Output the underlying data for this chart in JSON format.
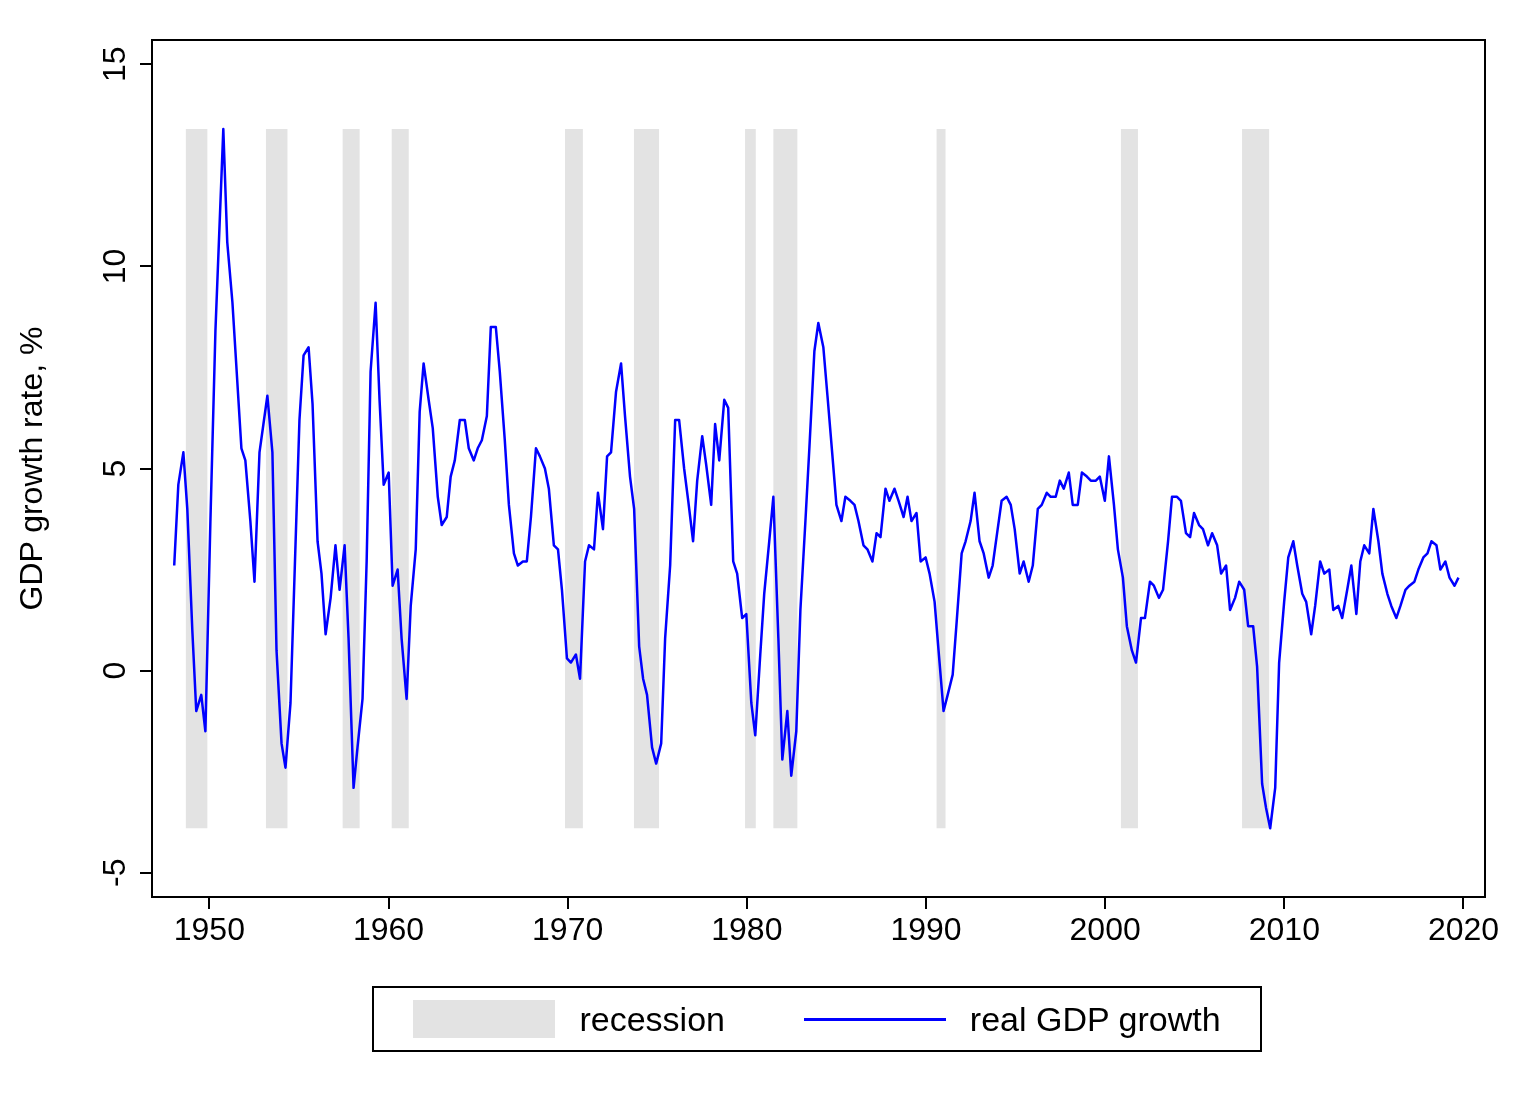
{
  "chart_data": {
    "type": "line",
    "ylabel": "GDP growth rate, %",
    "xlim": [
      1946.8,
      2021.2
    ],
    "xticks": [
      1950,
      1960,
      1970,
      1980,
      1990,
      2000,
      2010,
      2020
    ],
    "ylim": [
      -5.6,
      15.6
    ],
    "yticks": [
      -5,
      0,
      5,
      10,
      15
    ],
    "grid": false,
    "legend": "bottom",
    "marker": "none",
    "line_style": "solid",
    "series": [
      {
        "name": "real GDP growth",
        "color": "#0000ff",
        "x": [
          1948.04,
          1948.27,
          1948.55,
          1948.77,
          1949.05,
          1949.27,
          1949.55,
          1949.78,
          1950.06,
          1950.34,
          1950.78,
          1951.0,
          1951.29,
          1951.79,
          1952.01,
          1952.29,
          1952.52,
          1952.8,
          1953.02,
          1953.24,
          1953.52,
          1953.75,
          1954.03,
          1954.25,
          1954.53,
          1955.03,
          1955.26,
          1955.54,
          1955.76,
          1956.04,
          1956.26,
          1956.49,
          1956.77,
          1957.04,
          1957.27,
          1957.55,
          1957.77,
          1958.05,
          1958.27,
          1958.55,
          1958.78,
          1959.0,
          1959.28,
          1959.5,
          1959.73,
          1960.01,
          1960.23,
          1960.51,
          1960.73,
          1961.01,
          1961.24,
          1961.52,
          1961.74,
          1961.96,
          1962.24,
          1962.47,
          1962.75,
          1962.97,
          1963.25,
          1963.47,
          1963.7,
          1963.98,
          1964.26,
          1964.48,
          1964.76,
          1964.98,
          1965.21,
          1965.49,
          1965.71,
          1965.99,
          1966.21,
          1966.49,
          1966.72,
          1967.0,
          1967.22,
          1967.5,
          1967.72,
          1967.95,
          1968.23,
          1968.45,
          1968.73,
          1968.95,
          1969.23,
          1969.46,
          1969.68,
          1969.96,
          1970.18,
          1970.46,
          1970.69,
          1970.97,
          1971.19,
          1971.47,
          1971.69,
          1971.97,
          1972.2,
          1972.42,
          1972.7,
          1972.98,
          1973.2,
          1973.48,
          1973.71,
          1973.99,
          1974.21,
          1974.43,
          1974.71,
          1974.94,
          1975.22,
          1975.44,
          1975.72,
          1976.0,
          1976.22,
          1976.5,
          1976.73,
          1977.0,
          1977.23,
          1977.51,
          1977.73,
          1978.01,
          1978.23,
          1978.46,
          1978.74,
          1978.96,
          1979.24,
          1979.46,
          1979.74,
          1979.97,
          1980.25,
          1980.47,
          1980.75,
          1980.97,
          1981.25,
          1981.48,
          1981.76,
          1981.98,
          1982.26,
          1982.48,
          1982.76,
          1982.99,
          1983.27,
          1983.49,
          1983.77,
          1983.99,
          1984.27,
          1984.5,
          1984.78,
          1985.0,
          1985.28,
          1985.5,
          1985.78,
          1986.01,
          1986.23,
          1986.51,
          1986.73,
          1987.01,
          1987.24,
          1987.46,
          1987.74,
          1987.96,
          1988.24,
          1988.47,
          1988.75,
          1988.97,
          1989.19,
          1989.47,
          1989.7,
          1989.98,
          1990.2,
          1990.48,
          1990.7,
          1990.98,
          1991.21,
          1991.49,
          1991.71,
          1991.99,
          1992.21,
          1992.49,
          1992.71,
          1992.99,
          1993.22,
          1993.5,
          1993.72,
          1994.0,
          1994.22,
          1994.5,
          1994.73,
          1994.95,
          1995.23,
          1995.45,
          1995.73,
          1995.96,
          1996.24,
          1996.46,
          1996.74,
          1996.96,
          1997.24,
          1997.47,
          1997.69,
          1997.97,
          1998.19,
          1998.47,
          1998.7,
          1998.98,
          1999.2,
          1999.48,
          1999.7,
          1999.98,
          2000.21,
          2000.49,
          2000.71,
          2000.99,
          2001.21,
          2001.49,
          2001.72,
          2002.0,
          2002.22,
          2002.5,
          2002.72,
          2003.0,
          2003.23,
          2003.51,
          2003.73,
          2004.01,
          2004.23,
          2004.51,
          2004.74,
          2004.96,
          2005.24,
          2005.46,
          2005.74,
          2005.97,
          2006.25,
          2006.47,
          2006.75,
          2006.97,
          2007.25,
          2007.48,
          2007.76,
          2007.98,
          2008.26,
          2008.48,
          2008.76,
          2008.98,
          2009.21,
          2009.49,
          2009.71,
          2009.99,
          2010.22,
          2010.5,
          2010.72,
          2011.0,
          2011.22,
          2011.5,
          2011.72,
          2012.0,
          2012.23,
          2012.51,
          2012.73,
          2013.01,
          2013.23,
          2013.51,
          2013.74,
          2014.02,
          2014.24,
          2014.46,
          2014.74,
          2014.97,
          2015.25,
          2015.47,
          2015.75,
          2015.97,
          2016.25,
          2016.48,
          2016.76,
          2016.98,
          2017.26,
          2017.48,
          2017.76,
          2017.99,
          2018.21,
          2018.49,
          2018.71,
          2018.99,
          2019.22,
          2019.5,
          2019.72
        ],
        "values": [
          2.6,
          4.6,
          5.4,
          4.0,
          1.0,
          -1.0,
          -0.6,
          -1.5,
          3.7,
          8.4,
          13.4,
          10.6,
          9.1,
          5.5,
          5.2,
          3.7,
          2.2,
          5.4,
          6.1,
          6.8,
          5.4,
          0.5,
          -1.8,
          -2.4,
          -0.8,
          6.2,
          7.8,
          8.0,
          6.6,
          3.2,
          2.4,
          0.9,
          1.8,
          3.1,
          2.0,
          3.1,
          0.8,
          -2.9,
          -1.9,
          -0.7,
          2.7,
          7.4,
          9.1,
          6.7,
          4.6,
          4.9,
          2.1,
          2.5,
          0.8,
          -0.7,
          1.6,
          3.0,
          6.4,
          7.6,
          6.7,
          6.0,
          4.3,
          3.6,
          3.8,
          4.8,
          5.2,
          6.2,
          6.2,
          5.5,
          5.2,
          5.5,
          5.7,
          6.3,
          8.5,
          8.5,
          7.4,
          5.7,
          4.1,
          2.9,
          2.6,
          2.7,
          2.7,
          3.8,
          5.5,
          5.3,
          5.0,
          4.5,
          3.1,
          3.0,
          2.0,
          0.3,
          0.2,
          0.4,
          -0.2,
          2.7,
          3.1,
          3.0,
          4.4,
          3.5,
          5.3,
          5.4,
          6.9,
          7.6,
          6.3,
          4.8,
          4.0,
          0.6,
          -0.2,
          -0.6,
          -1.9,
          -2.3,
          -1.8,
          0.8,
          2.6,
          6.2,
          6.2,
          5.0,
          4.2,
          3.2,
          4.7,
          5.8,
          5.1,
          4.1,
          6.1,
          5.2,
          6.7,
          6.5,
          2.7,
          2.4,
          1.3,
          1.4,
          -0.8,
          -1.6,
          0.4,
          1.9,
          3.2,
          4.3,
          0.8,
          -2.2,
          -1.0,
          -2.6,
          -1.5,
          1.5,
          3.7,
          5.5,
          7.9,
          8.6,
          8.0,
          6.8,
          5.3,
          4.1,
          3.7,
          4.3,
          4.2,
          4.1,
          3.7,
          3.1,
          3.0,
          2.7,
          3.4,
          3.3,
          4.5,
          4.2,
          4.5,
          4.2,
          3.8,
          4.3,
          3.7,
          3.9,
          2.7,
          2.8,
          2.4,
          1.7,
          0.5,
          -1.0,
          -0.6,
          -0.1,
          1.2,
          2.9,
          3.2,
          3.7,
          4.4,
          3.2,
          2.9,
          2.3,
          2.6,
          3.5,
          4.2,
          4.3,
          4.1,
          3.5,
          2.4,
          2.7,
          2.2,
          2.6,
          4.0,
          4.1,
          4.4,
          4.3,
          4.3,
          4.7,
          4.5,
          4.9,
          4.1,
          4.1,
          4.9,
          4.8,
          4.7,
          4.7,
          4.8,
          4.2,
          5.3,
          4.1,
          3.0,
          2.3,
          1.1,
          0.5,
          0.2,
          1.3,
          1.3,
          2.2,
          2.1,
          1.8,
          2.0,
          3.2,
          4.3,
          4.3,
          4.2,
          3.4,
          3.3,
          3.9,
          3.6,
          3.5,
          3.1,
          3.4,
          3.1,
          2.4,
          2.6,
          1.5,
          1.8,
          2.2,
          2.0,
          1.1,
          1.1,
          0.1,
          -2.8,
          -3.4,
          -3.9,
          -2.9,
          0.2,
          1.7,
          2.8,
          3.2,
          2.6,
          1.9,
          1.7,
          0.9,
          1.6,
          2.7,
          2.4,
          2.5,
          1.5,
          1.6,
          1.3,
          2.0,
          2.6,
          1.4,
          2.7,
          3.1,
          2.9,
          4.0,
          3.2,
          2.4,
          1.9,
          1.6,
          1.3,
          1.6,
          2.0,
          2.1,
          2.2,
          2.5,
          2.8,
          2.9,
          3.2,
          3.1,
          2.5,
          2.7,
          2.3,
          2.1,
          2.3
        ]
      }
    ],
    "bands": [
      {
        "axis": "x",
        "from": 1948.69,
        "to": 1949.89,
        "label": "recession",
        "color": "#e3e3e3"
      },
      {
        "axis": "x",
        "from": 1953.16,
        "to": 1954.36,
        "color": "#e3e3e3"
      },
      {
        "axis": "x",
        "from": 1957.44,
        "to": 1958.39,
        "color": "#e3e3e3"
      },
      {
        "axis": "x",
        "from": 1960.18,
        "to": 1961.13,
        "color": "#e3e3e3"
      },
      {
        "axis": "x",
        "from": 1969.85,
        "to": 1970.85,
        "color": "#e3e3e3"
      },
      {
        "axis": "x",
        "from": 1973.7,
        "to": 1975.1,
        "color": "#e3e3e3"
      },
      {
        "axis": "x",
        "from": 1979.9,
        "to": 1980.5,
        "color": "#e3e3e3"
      },
      {
        "axis": "x",
        "from": 1981.48,
        "to": 1982.82,
        "color": "#e3e3e3"
      },
      {
        "axis": "x",
        "from": 1990.59,
        "to": 1991.09,
        "color": "#e3e3e3"
      },
      {
        "axis": "x",
        "from": 2000.88,
        "to": 2001.83,
        "color": "#e3e3e3"
      },
      {
        "axis": "x",
        "from": 2007.64,
        "to": 2009.15,
        "color": "#e3e3e3"
      }
    ]
  }
}
